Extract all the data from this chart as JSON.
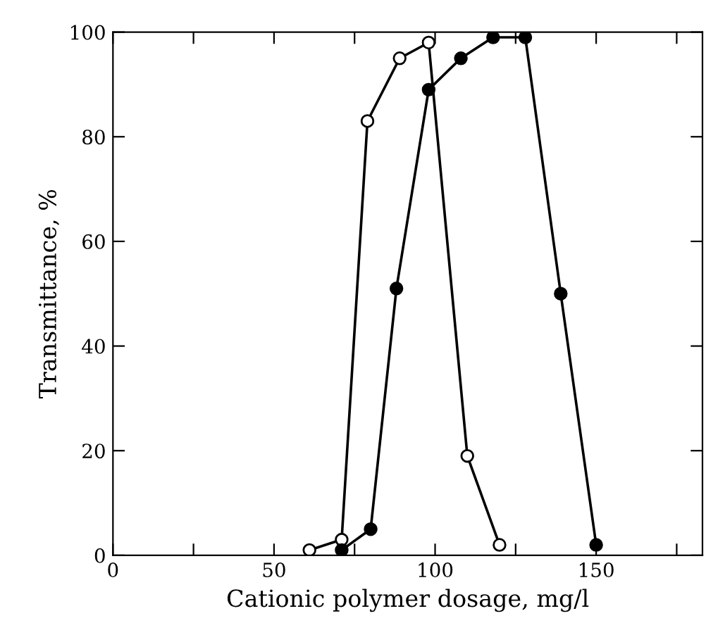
{
  "chart_data": {
    "type": "line",
    "xlabel": "Cationic polymer dosage, mg/l",
    "ylabel": "Transmittance, %",
    "xlim": [
      0,
      183
    ],
    "xticks": [
      0,
      50,
      100,
      150,
      {
        "value": 25,
        "label": null
      },
      {
        "value": 75,
        "label": null
      },
      {
        "value": 125,
        "label": null
      },
      {
        "value": 175,
        "label": null
      }
    ],
    "ylim": [
      0,
      100
    ],
    "yticks": [
      0,
      20,
      40,
      60,
      80,
      100
    ],
    "grid": false,
    "marker": "circle",
    "line_style": "solid",
    "series": [
      {
        "color": "#000000",
        "x": [
          61,
          71,
          79,
          89,
          98,
          110,
          120
        ],
        "values": [
          1,
          3,
          83,
          95,
          98,
          19,
          2
        ]
      },
      {
        "color": "#000000",
        "x": [
          71,
          80,
          88,
          98,
          108,
          118,
          128,
          139,
          150
        ],
        "values": [
          1,
          5,
          51,
          89,
          95,
          99,
          99,
          50,
          2
        ]
      }
    ]
  }
}
